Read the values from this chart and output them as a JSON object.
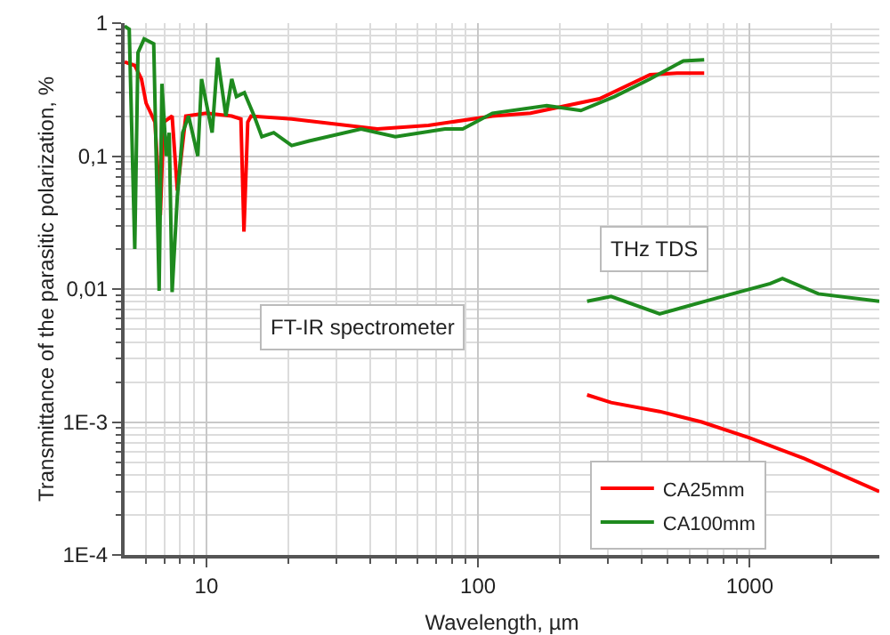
{
  "chart_data": {
    "type": "line",
    "xlabel": "Wavelength, µm",
    "ylabel": "Transmittance of the parasitic polarization, %",
    "annotations": [
      "FT-IR spectrometer",
      "THz TDS"
    ],
    "log": "xy",
    "grid": true,
    "legend": "bottom right",
    "marker": "none",
    "line_style": "solid",
    "xlim": [
      5,
      3000
    ],
    "xticks": [
      10,
      100,
      1000
    ],
    "ylim": [
      0.0001,
      1
    ],
    "yticks": [
      {
        "value": 1,
        "label": "1"
      },
      {
        "value": 0.1,
        "label": "0,1"
      },
      {
        "value": 0.01,
        "label": "0,01"
      },
      {
        "value": 0.001,
        "label": "1E-3"
      },
      {
        "value": 0.0001,
        "label": "1E-4"
      }
    ],
    "series": [
      {
        "name": "CA25mm",
        "color": "#ff0000",
        "x": [
          5,
          5.45,
          5.77,
          6.0,
          6.47,
          6.77,
          6.96,
          7.48,
          7.82,
          8.4,
          10,
          12.4,
          13.4,
          13.75,
          14.2,
          14.6,
          20.6,
          42.6,
          65.7,
          113,
          156,
          280,
          430,
          540,
          680
        ],
        "values": [
          0.51,
          0.48,
          0.38,
          0.25,
          0.18,
          0.036,
          0.18,
          0.2,
          0.055,
          0.2,
          0.21,
          0.2,
          0.19,
          0.027,
          0.18,
          0.2,
          0.19,
          0.16,
          0.17,
          0.2,
          0.21,
          0.27,
          0.41,
          0.42,
          0.42
        ]
      },
      {
        "name": "CA100mm",
        "color": "#1e8a1e",
        "x": [
          5,
          5.2,
          5.45,
          5.6,
          5.9,
          6.4,
          6.7,
          6.86,
          7.12,
          7.3,
          7.48,
          7.82,
          8.18,
          8.6,
          9.3,
          9.6,
          10.5,
          11.0,
          11.8,
          12.4,
          12.9,
          13.8,
          15.0,
          16.0,
          17.7,
          20.6,
          23.9,
          37.1,
          49.6,
          75.6,
          87.8,
          113,
          179,
          239,
          318,
          430,
          570,
          680
        ],
        "values": [
          0.95,
          0.9,
          0.02,
          0.6,
          0.76,
          0.7,
          0.0097,
          0.35,
          0.1,
          0.15,
          0.0095,
          0.05,
          0.15,
          0.2,
          0.1,
          0.38,
          0.15,
          0.55,
          0.2,
          0.38,
          0.28,
          0.3,
          0.2,
          0.14,
          0.15,
          0.12,
          0.13,
          0.16,
          0.14,
          0.16,
          0.16,
          0.21,
          0.24,
          0.22,
          0.28,
          0.38,
          0.52,
          0.53
        ]
      },
      {
        "color": "#ff0000",
        "x": [
          252,
          309,
          466,
          666,
          1000,
          1590,
          3000
        ],
        "values": [
          0.0016,
          0.0014,
          0.0012,
          0.001,
          0.00076,
          0.00053,
          0.0003
        ]
      },
      {
        "color": "#1e8a1e",
        "x": [
          252,
          309,
          466,
          716,
          1190,
          1320,
          1790,
          3000
        ],
        "values": [
          0.0081,
          0.0088,
          0.0065,
          0.0083,
          0.011,
          0.012,
          0.0092,
          0.0081
        ]
      }
    ]
  }
}
